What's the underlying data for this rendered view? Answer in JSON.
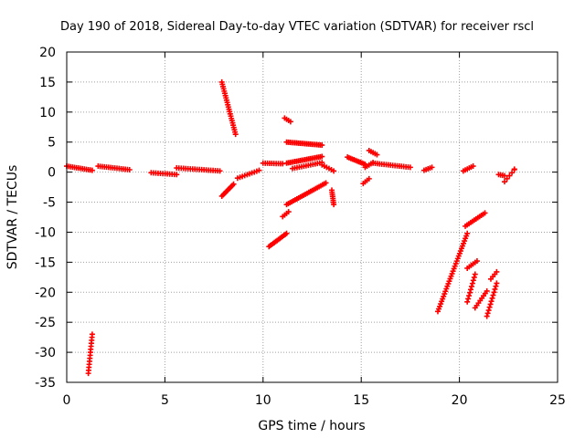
{
  "chart_data": {
    "type": "scatter",
    "title": "Day 190 of 2018, Sidereal Day-to-day VTEC variation (SDTVAR) for receiver rscl",
    "xlabel": "GPS time / hours",
    "ylabel": "SDTVAR / TECUs",
    "xlim": [
      0,
      25
    ],
    "ylim": [
      -35,
      20
    ],
    "xticks": [
      0,
      5,
      10,
      15,
      20,
      25
    ],
    "yticks": [
      -35,
      -30,
      -25,
      -20,
      -15,
      -10,
      -5,
      0,
      5,
      10,
      15,
      20
    ],
    "xtick_labels": [
      "0",
      "5",
      "10",
      "15",
      "20",
      "25"
    ],
    "ytick_labels": [
      "-35",
      "-30",
      "-25",
      "-20",
      "-15",
      "-10",
      "-5",
      "0",
      "5",
      "10",
      "15",
      "20"
    ],
    "grid": true,
    "marker": "plus",
    "color": "#ff0000",
    "series": [
      {
        "name": "rscl",
        "segments": [
          {
            "x0": 0.0,
            "x1": 1.3,
            "y0": 1.0,
            "y1": 0.3,
            "n": 14
          },
          {
            "x0": 1.6,
            "x1": 3.2,
            "y0": 1.0,
            "y1": 0.4,
            "n": 16
          },
          {
            "x0": 4.3,
            "x1": 5.6,
            "y0": -0.1,
            "y1": -0.4,
            "n": 12
          },
          {
            "x0": 5.6,
            "x1": 7.8,
            "y0": 0.7,
            "y1": 0.2,
            "n": 20
          },
          {
            "x0": 7.9,
            "x1": 8.6,
            "y0": 15.0,
            "y1": 6.3,
            "n": 24
          },
          {
            "x0": 7.9,
            "x1": 8.5,
            "y0": -4.0,
            "y1": -2.0,
            "n": 10
          },
          {
            "x0": 8.7,
            "x1": 9.8,
            "y0": -1.0,
            "y1": 0.3,
            "n": 10
          },
          {
            "x0": 10.0,
            "x1": 11.0,
            "y0": 1.5,
            "y1": 1.4,
            "n": 10
          },
          {
            "x0": 10.3,
            "x1": 11.2,
            "y0": -12.4,
            "y1": -10.2,
            "n": 14
          },
          {
            "x0": 11.0,
            "x1": 11.3,
            "y0": -7.4,
            "y1": -6.6,
            "n": 4
          },
          {
            "x0": 11.1,
            "x1": 11.4,
            "y0": 9.0,
            "y1": 8.4,
            "n": 4
          },
          {
            "x0": 11.2,
            "x1": 13.0,
            "y0": 5.0,
            "y1": 4.5,
            "n": 22
          },
          {
            "x0": 11.2,
            "x1": 13.0,
            "y0": 1.5,
            "y1": 2.6,
            "n": 22
          },
          {
            "x0": 11.2,
            "x1": 13.2,
            "y0": -5.4,
            "y1": -1.8,
            "n": 24
          },
          {
            "x0": 11.5,
            "x1": 13.0,
            "y0": 0.6,
            "y1": 1.6,
            "n": 14
          },
          {
            "x0": 13.0,
            "x1": 13.6,
            "y0": 1.2,
            "y1": 0.2,
            "n": 6
          },
          {
            "x0": 13.5,
            "x1": 13.6,
            "y0": -3.0,
            "y1": -5.4,
            "n": 8
          },
          {
            "x0": 14.3,
            "x1": 15.2,
            "y0": 2.5,
            "y1": 1.3,
            "n": 12
          },
          {
            "x0": 15.2,
            "x1": 15.6,
            "y0": 0.8,
            "y1": 1.6,
            "n": 5
          },
          {
            "x0": 15.1,
            "x1": 15.4,
            "y0": -1.9,
            "y1": -1.1,
            "n": 4
          },
          {
            "x0": 15.4,
            "x1": 15.8,
            "y0": 3.6,
            "y1": 2.9,
            "n": 5
          },
          {
            "x0": 15.6,
            "x1": 17.5,
            "y0": 1.5,
            "y1": 0.8,
            "n": 18
          },
          {
            "x0": 18.2,
            "x1": 18.6,
            "y0": 0.3,
            "y1": 0.8,
            "n": 5
          },
          {
            "x0": 18.9,
            "x1": 20.4,
            "y0": -23.2,
            "y1": -10.2,
            "n": 32
          },
          {
            "x0": 20.2,
            "x1": 20.7,
            "y0": 0.2,
            "y1": 1.0,
            "n": 6
          },
          {
            "x0": 20.4,
            "x1": 20.9,
            "y0": -16.0,
            "y1": -14.8,
            "n": 6
          },
          {
            "x0": 20.3,
            "x1": 21.3,
            "y0": -9.0,
            "y1": -6.8,
            "n": 12
          },
          {
            "x0": 20.4,
            "x1": 20.8,
            "y0": -21.6,
            "y1": -17.0,
            "n": 10
          },
          {
            "x0": 20.8,
            "x1": 21.4,
            "y0": -22.6,
            "y1": -19.8,
            "n": 8
          },
          {
            "x0": 21.4,
            "x1": 21.9,
            "y0": -24.0,
            "y1": -18.5,
            "n": 12
          },
          {
            "x0": 21.6,
            "x1": 21.9,
            "y0": -17.8,
            "y1": -16.6,
            "n": 4
          },
          {
            "x0": 22.0,
            "x1": 22.3,
            "y0": -0.4,
            "y1": -0.6,
            "n": 4
          },
          {
            "x0": 22.3,
            "x1": 22.8,
            "y0": -1.6,
            "y1": 0.4,
            "n": 5
          },
          {
            "x0": 22.8,
            "x1": 23.0,
            "y0": 0.5,
            "y1": 0.5,
            "n": 1
          },
          {
            "x0": 1.1,
            "x1": 1.3,
            "y0": -33.5,
            "y1": -27.0,
            "n": 14
          }
        ]
      }
    ]
  }
}
